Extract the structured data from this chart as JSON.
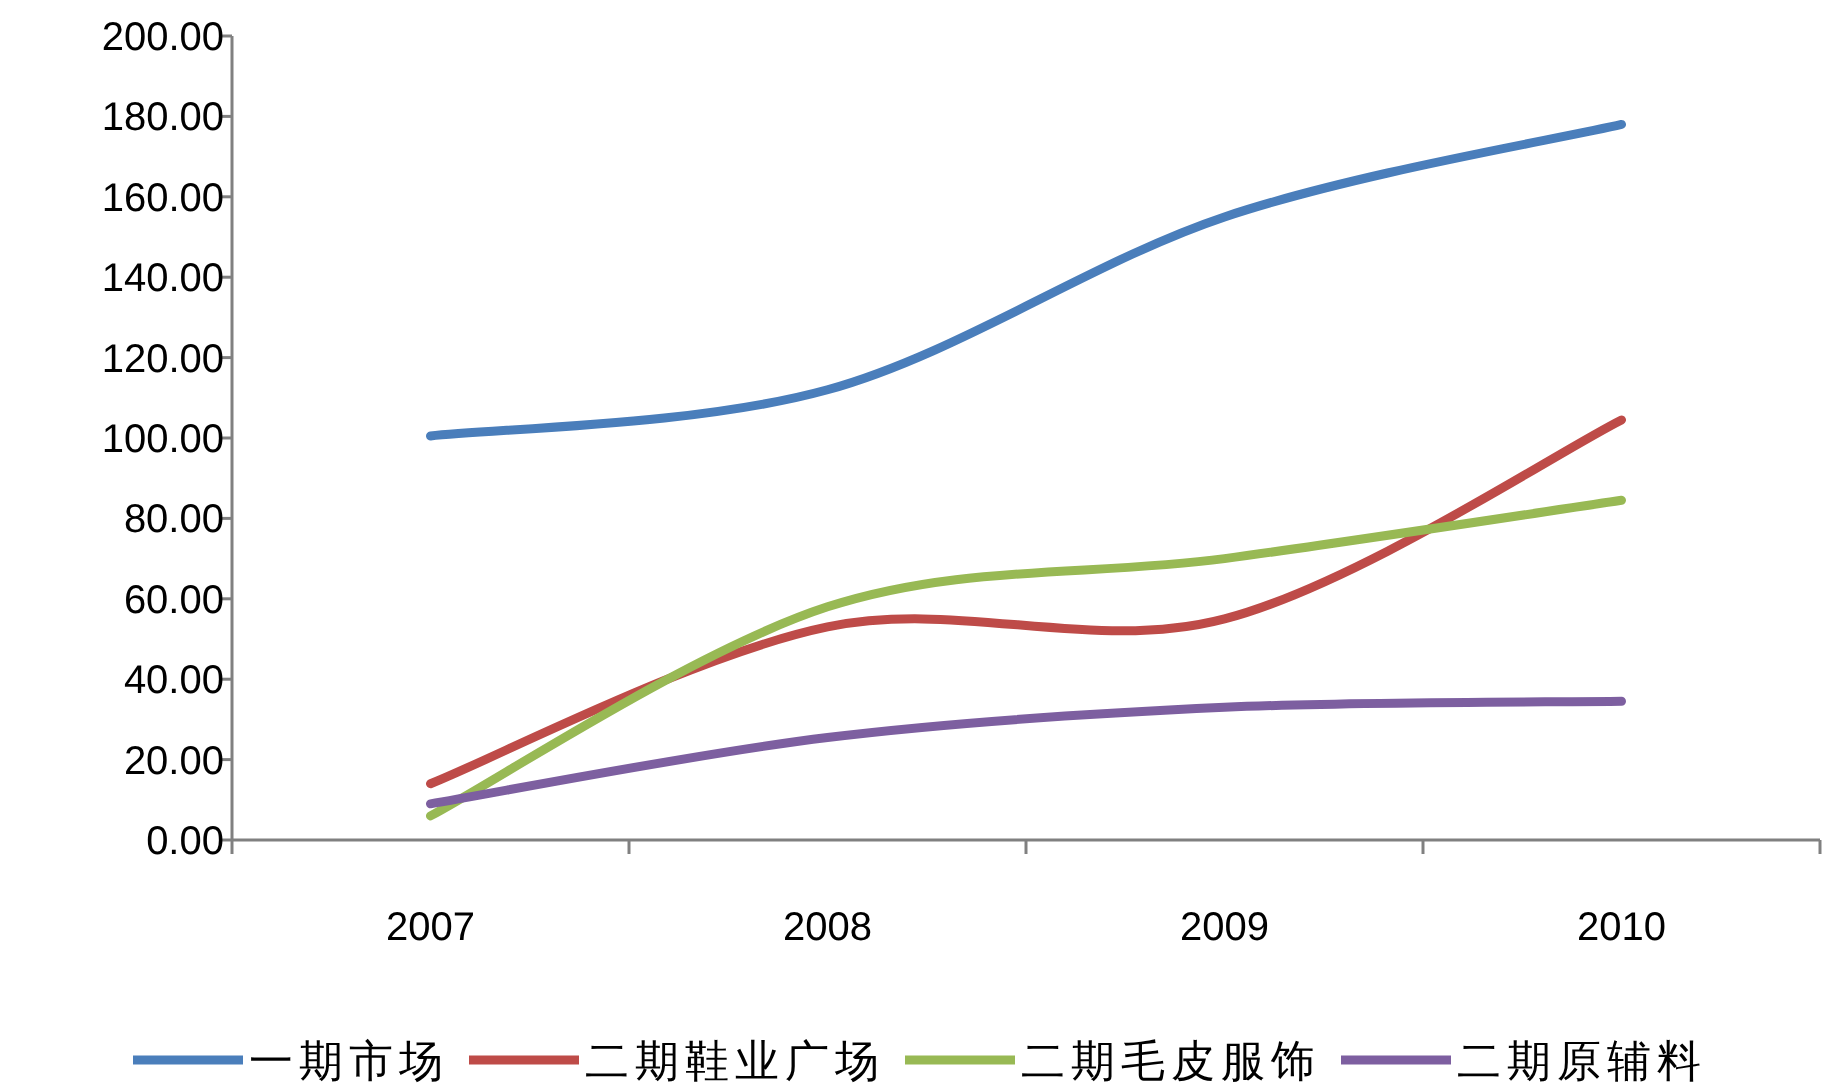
{
  "chart_data": {
    "type": "line",
    "categories": [
      "2007",
      "2008",
      "2009",
      "2010"
    ],
    "series": [
      {
        "name": "一期市场",
        "color": "#4a7ebb",
        "values": [
          100.5,
          112,
          155,
          178
        ]
      },
      {
        "name": "二期鞋业广场",
        "color": "#be4b48",
        "values": [
          14,
          53,
          55,
          104.5
        ]
      },
      {
        "name": "二期毛皮服饰",
        "color": "#98b954",
        "values": [
          6,
          58,
          70,
          84.5
        ]
      },
      {
        "name": "二期原辅料",
        "color": "#7d5fa0",
        "values": [
          9,
          25.5,
          33,
          34.5
        ]
      }
    ],
    "ylim": [
      0,
      200
    ],
    "yticks": [
      {
        "value": 0,
        "label": "0.00"
      },
      {
        "value": 20,
        "label": "20.00"
      },
      {
        "value": 40,
        "label": "40.00"
      },
      {
        "value": 60,
        "label": "60.00"
      },
      {
        "value": 80,
        "label": "80.00"
      },
      {
        "value": 100,
        "label": "100.00"
      },
      {
        "value": 120,
        "label": "120.00"
      },
      {
        "value": 140,
        "label": "140.00"
      },
      {
        "value": 160,
        "label": "160.00"
      },
      {
        "value": 180,
        "label": "180.00"
      },
      {
        "value": 200,
        "label": "200.00"
      }
    ],
    "grid": false,
    "legend": "bottom"
  }
}
